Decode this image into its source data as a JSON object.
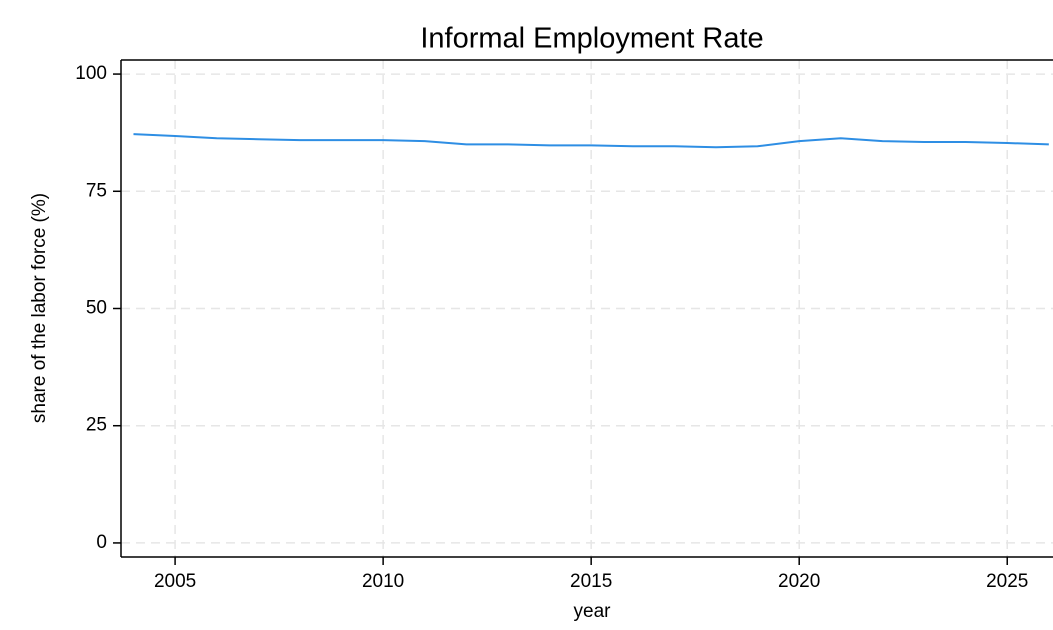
{
  "chart_data": {
    "type": "line",
    "title": "Informal Employment Rate",
    "x_label": "year",
    "y_label": "share of the labor force (%)",
    "x": [
      2004,
      2005,
      2006,
      2007,
      2008,
      2009,
      2010,
      2011,
      2012,
      2013,
      2014,
      2015,
      2016,
      2017,
      2018,
      2019,
      2020,
      2021,
      2022,
      2023,
      2024,
      2025,
      2026
    ],
    "series": [
      {
        "name": "Informal Employment Rate",
        "color": "#2e8ee4",
        "values": [
          87.2,
          86.8,
          86.3,
          86.1,
          85.9,
          85.9,
          85.9,
          85.7,
          85.0,
          85.0,
          84.8,
          84.8,
          84.6,
          84.6,
          84.4,
          84.6,
          85.7,
          86.3,
          85.7,
          85.5,
          85.5,
          85.3,
          85.0
        ]
      }
    ],
    "xlim": [
      2003.7,
      2026.1
    ],
    "xticks": [
      2005,
      2010,
      2015,
      2020,
      2025
    ],
    "ylim": [
      -3,
      103
    ],
    "yticks": [
      0,
      25,
      50,
      75,
      100
    ],
    "grid": true
  }
}
